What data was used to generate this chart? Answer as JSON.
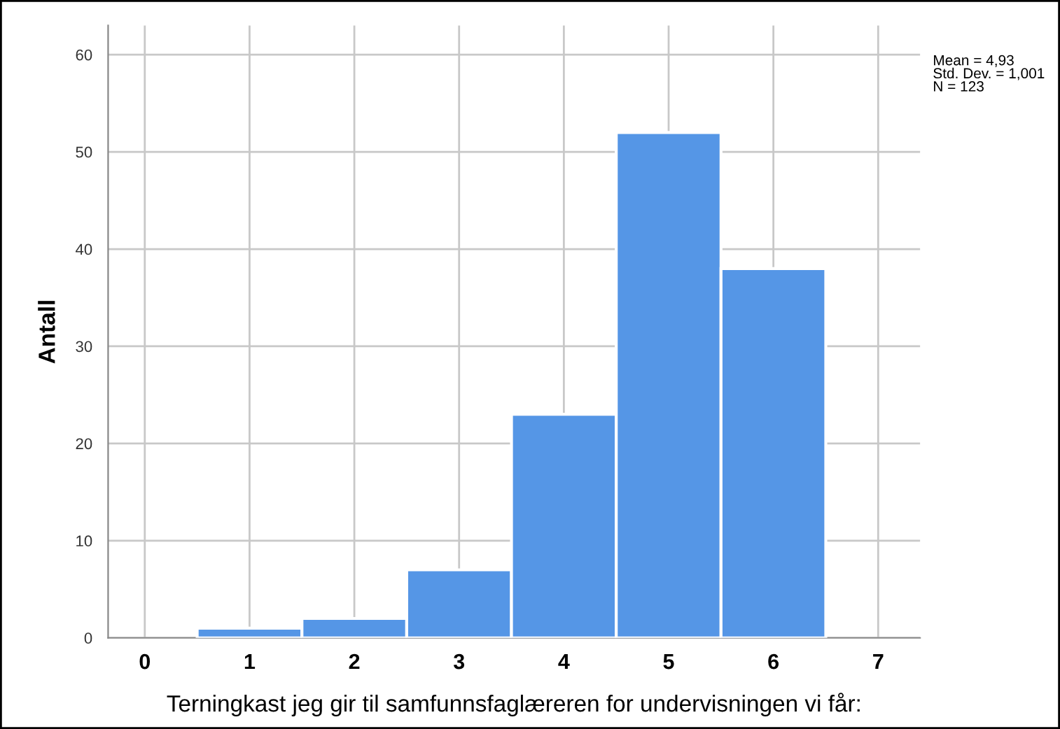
{
  "chart_data": {
    "type": "histogram",
    "xlabel": "Terningkast jeg gir til samfunnsfaglæreren for undervisningen vi får:",
    "ylabel": "Antall",
    "bins": [
      0.5,
      1.5,
      2.5,
      3.5,
      4.5,
      5.5,
      6.5
    ],
    "values": [
      1,
      2,
      7,
      23,
      52,
      38
    ],
    "color": "#5596e6",
    "xlim": [
      -0.35,
      7.4
    ],
    "xticks": [
      0,
      1,
      2,
      3,
      4,
      5,
      6,
      7
    ],
    "ylim": [
      0,
      63
    ],
    "yticks": [
      0,
      10,
      20,
      30,
      40,
      50,
      60
    ],
    "grid": true,
    "annotations": [
      "Mean = 4,93\nStd. Dev. = 1,001\nN = 123"
    ]
  }
}
